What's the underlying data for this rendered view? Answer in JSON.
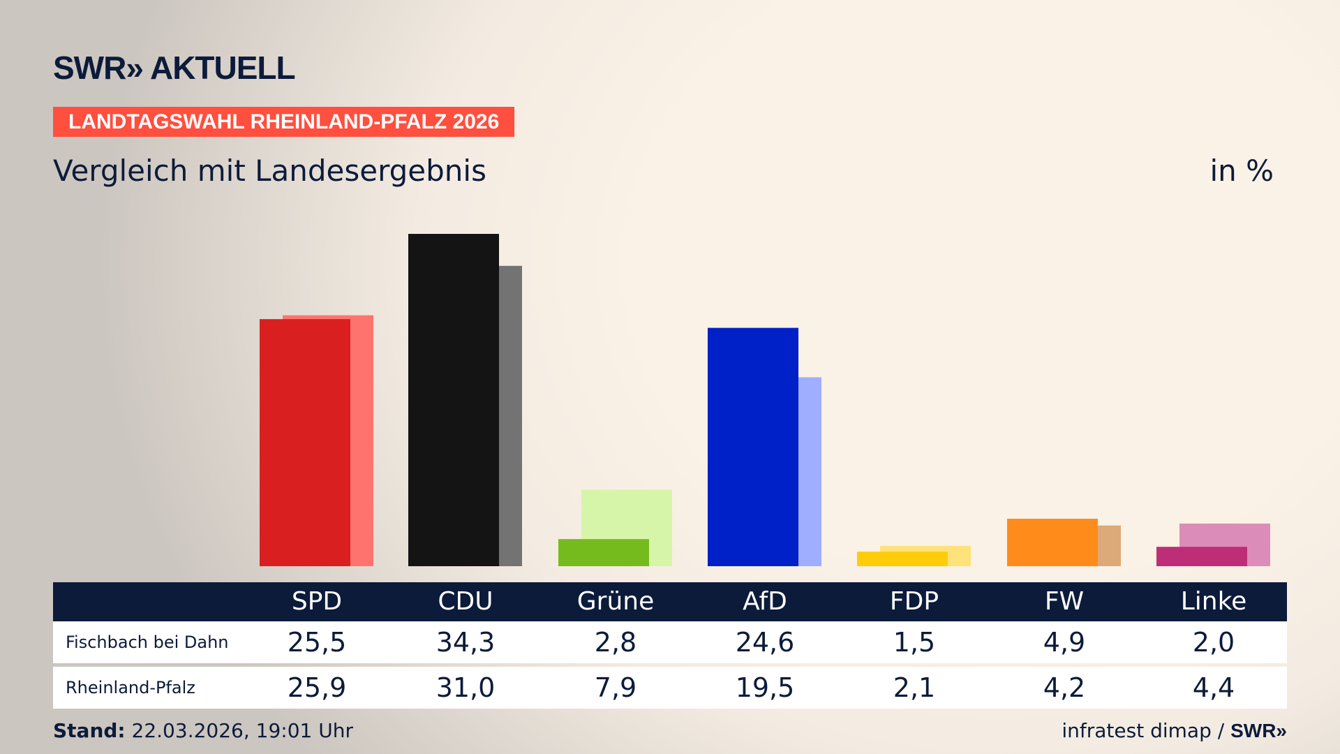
{
  "header": {
    "logo": "SWR» AKTUELL",
    "banner": "LANDTAGSWAHL RHEINLAND-PFALZ 2026",
    "subtitle": "Vergleich mit Landesergebnis",
    "unit": "in %"
  },
  "chart_data": {
    "type": "bar",
    "categories": [
      "SPD",
      "CDU",
      "Grüne",
      "AfD",
      "FDP",
      "FW",
      "Linke"
    ],
    "series": [
      {
        "name": "Fischbach bei Dahn",
        "values": [
          25.5,
          34.3,
          2.8,
          24.6,
          1.5,
          4.9,
          2.0
        ],
        "display": [
          "25,5",
          "34,3",
          "2,8",
          "24,6",
          "1,5",
          "4,9",
          "2,0"
        ]
      },
      {
        "name": "Rheinland-Pfalz",
        "values": [
          25.9,
          31.0,
          7.9,
          19.5,
          2.1,
          4.2,
          4.4
        ],
        "display": [
          "25,9",
          "31,0",
          "7,9",
          "19,5",
          "2,1",
          "4,2",
          "4,4"
        ]
      }
    ],
    "colors": {
      "primary": [
        "#d91f1f",
        "#141414",
        "#76bb1e",
        "#0020c8",
        "#ffcc0a",
        "#ff8c1a",
        "#be2d78"
      ],
      "secondary": [
        "#ff736e",
        "#737373",
        "#d7f5a8",
        "#a0aeff",
        "#ffe27a",
        "#dcaa78",
        "#dc8cb9"
      ]
    },
    "ylim": [
      0,
      35
    ],
    "grid": false
  },
  "footer": {
    "stand_label": "Stand:",
    "stand_value": "22.03.2026, 19:01 Uhr",
    "source": "infratest dimap / ",
    "source_logo": "SWR»"
  }
}
